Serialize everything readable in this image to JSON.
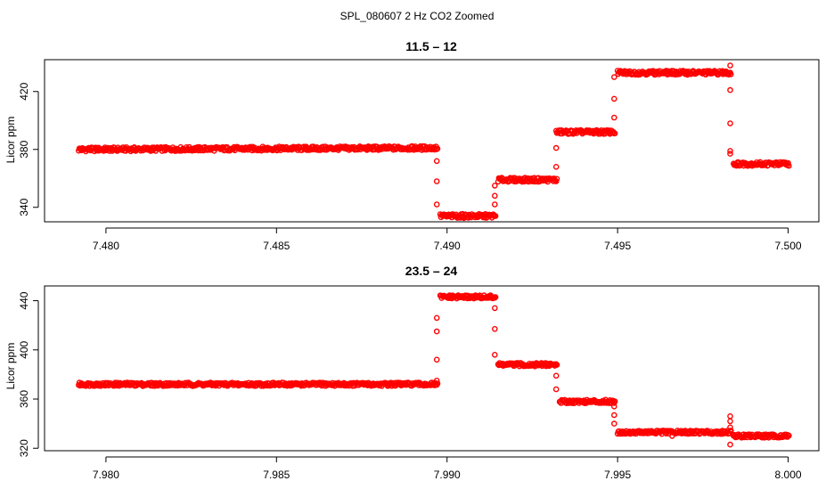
{
  "figure_title": "SPL_080607  2 Hz CO2 Zoomed",
  "colors": {
    "points": "#ff0000",
    "axes": "#000000"
  },
  "chart_data": [
    {
      "type": "scatter",
      "title": "11.5 – 12",
      "xlabel": "",
      "ylabel": "Licor ppm",
      "xlim": [
        7.4782,
        7.5009
      ],
      "ylim": [
        330,
        442
      ],
      "xticks": [
        7.48,
        7.485,
        7.49,
        7.495,
        7.5
      ],
      "xtick_labels": [
        "7.480",
        "7.485",
        "7.490",
        "7.495",
        "7.500"
      ],
      "yticks": [
        340,
        380,
        420
      ],
      "ytick_labels": [
        "340",
        "380",
        "420"
      ],
      "grid": false,
      "marker": "open-circle",
      "series": [
        {
          "segments": [
            {
              "x": [
                7.4792,
                7.4897
              ],
              "y": [
                380,
                381
              ]
            },
            {
              "x": [
                7.4898,
                7.4914
              ],
              "y": [
                334,
                334
              ]
            },
            {
              "x": [
                7.4915,
                7.4932
              ],
              "y": [
                359,
                359
              ]
            },
            {
              "x": [
                7.4932,
                7.4949
              ],
              "y": [
                392,
                392
              ]
            },
            {
              "x": [
                7.495,
                7.4983
              ],
              "y": [
                433,
                433
              ]
            },
            {
              "x": [
                7.4984,
                7.5
              ],
              "y": [
                370,
                370
              ]
            }
          ],
          "transitions": [
            {
              "x": 7.4897,
              "y": [
                372,
                358,
                342
              ]
            },
            {
              "x": 7.4914,
              "y": [
                342,
                348,
                355
              ]
            },
            {
              "x": 7.4932,
              "y": [
                368,
                381
              ]
            },
            {
              "x": 7.4949,
              "y": [
                402,
                415,
                430
              ]
            },
            {
              "x": 7.4983,
              "y": [
                438,
                421,
                398,
                379,
                377
              ]
            }
          ],
          "outliers": [
            {
              "x": 7.4966,
              "y": 432
            }
          ]
        }
      ]
    },
    {
      "type": "scatter",
      "title": "23.5 – 24",
      "xlabel": "",
      "ylabel": "Licor ppm",
      "xlim": [
        7.9782,
        8.0009
      ],
      "ylim": [
        318,
        452
      ],
      "xticks": [
        7.98,
        7.985,
        7.99,
        7.995,
        8.0
      ],
      "xtick_labels": [
        "7.980",
        "7.985",
        "7.990",
        "7.995",
        "8.000"
      ],
      "yticks": [
        320,
        360,
        400,
        440
      ],
      "ytick_labels": [
        "320",
        "360",
        "400",
        "440"
      ],
      "grid": false,
      "marker": "open-circle",
      "series": [
        {
          "segments": [
            {
              "x": [
                7.9792,
                7.9897
              ],
              "y": [
                372,
                372
              ]
            },
            {
              "x": [
                7.9898,
                7.9914
              ],
              "y": [
                443,
                443
              ]
            },
            {
              "x": [
                7.9915,
                7.9932
              ],
              "y": [
                388,
                388
              ]
            },
            {
              "x": [
                7.9933,
                7.9949
              ],
              "y": [
                358,
                358
              ]
            },
            {
              "x": [
                7.995,
                7.9983
              ],
              "y": [
                333,
                333
              ]
            },
            {
              "x": [
                7.9984,
                8.0
              ],
              "y": [
                330,
                330
              ]
            }
          ],
          "transitions": [
            {
              "x": 7.9897,
              "y": [
                375,
                392,
                415,
                426
              ]
            },
            {
              "x": 7.9914,
              "y": [
                434,
                417,
                396
              ]
            },
            {
              "x": 7.9932,
              "y": [
                379,
                368
              ]
            },
            {
              "x": 7.9949,
              "y": [
                354,
                347,
                340
              ]
            },
            {
              "x": 7.9983,
              "y": [
                346,
                342,
                337
              ]
            }
          ],
          "outliers": [
            {
              "x": 7.9966,
              "y": 330
            },
            {
              "x": 7.9983,
              "y": 323
            }
          ]
        }
      ]
    }
  ]
}
